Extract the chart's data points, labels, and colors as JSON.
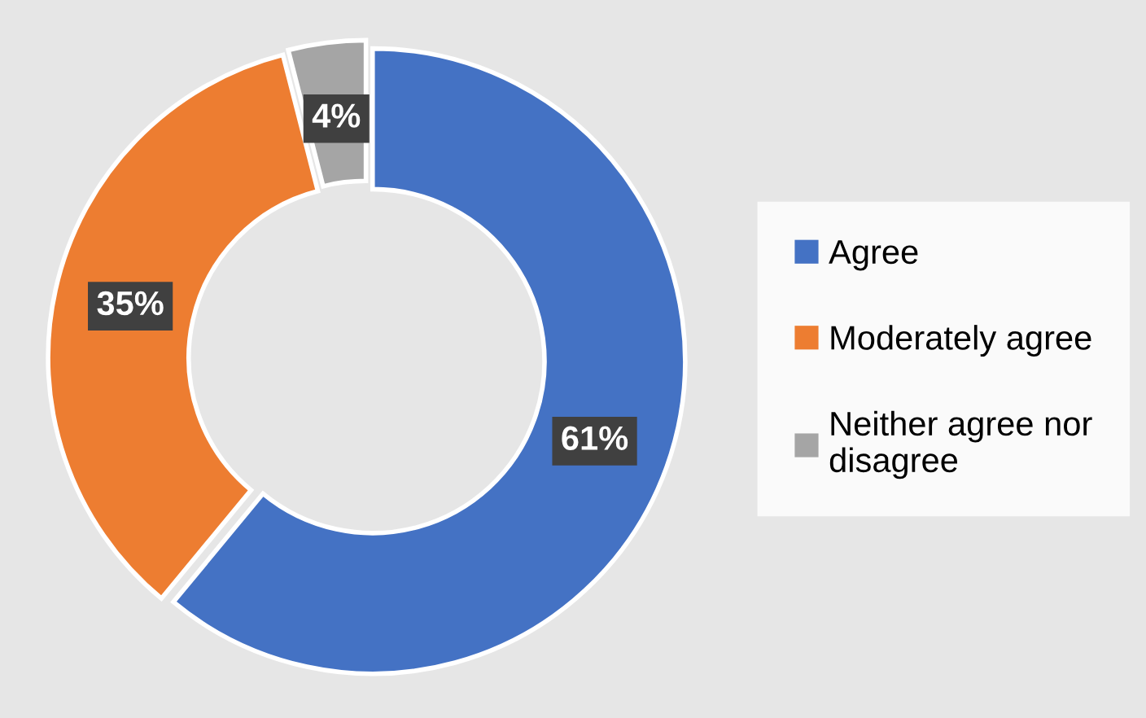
{
  "chart_data": {
    "type": "donut",
    "categories": [
      "Agree",
      "Moderately agree",
      "Neither agree nor disagree"
    ],
    "values": [
      61,
      35,
      4
    ],
    "colors": [
      "#4472c4",
      "#ed7d31",
      "#a5a5a5"
    ],
    "value_labels": [
      "61%",
      "35%",
      "4%"
    ],
    "legend": "right"
  }
}
